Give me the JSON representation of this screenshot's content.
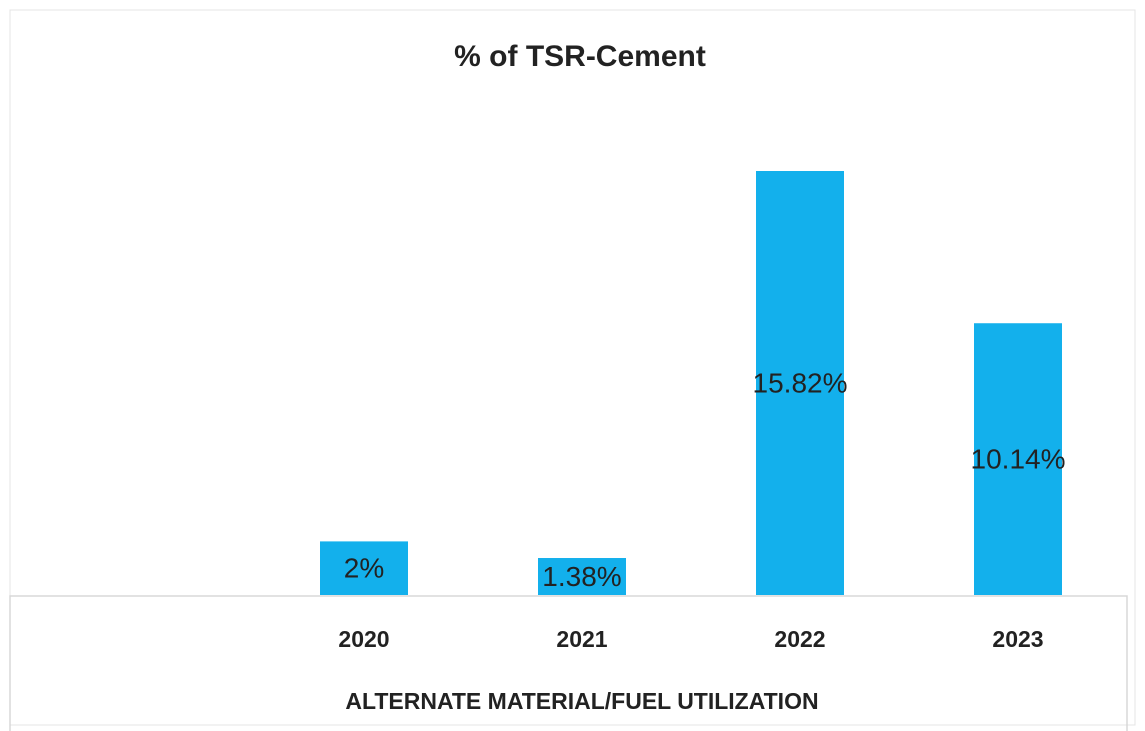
{
  "chart_data": {
    "type": "bar",
    "title": "% of TSR-Cement",
    "categories": [
      "2020",
      "2021",
      "2022",
      "2023"
    ],
    "values": [
      2,
      1.38,
      15.82,
      10.14
    ],
    "value_labels": [
      "2%",
      "1.38%",
      "15.82%",
      "10.14%"
    ],
    "color": "#13b0ec",
    "x_label": "ALTERNATE MATERIAL/FUEL UTILIZATION"
  }
}
